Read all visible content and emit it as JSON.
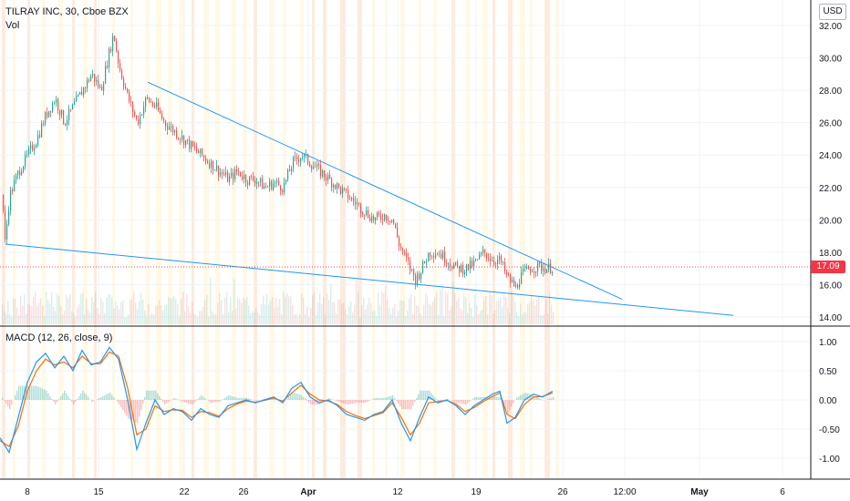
{
  "header": {
    "title": "TILRAY INC, 30, Cboe BZX",
    "volume_label": "Vol",
    "currency": "USD"
  },
  "macd": {
    "label": "MACD (12, 26, close, 9)"
  },
  "last_price": "17.09",
  "colors": {
    "up": "#26a69a",
    "down": "#ef5350",
    "trendline": "#2196f3",
    "macd_line": "#2196f3",
    "signal_line": "#ff6d00",
    "last_price": "#f23645"
  },
  "chart_data": [
    {
      "type": "candlestick",
      "title": "TILRAY INC, 30, Cboe BZX",
      "ylim": [
        13.5,
        32.6
      ],
      "y_ticks": [
        "14.00",
        "16.00",
        "18.00",
        "20.00",
        "22.00",
        "24.00",
        "26.00",
        "28.00",
        "30.00",
        "32.00"
      ],
      "x_ticks": [
        "8",
        "15",
        "22",
        "26",
        "Apr",
        "12",
        "19",
        "26",
        "12:00",
        "May",
        "6"
      ],
      "path": [
        [
          0,
          23.5
        ],
        [
          5,
          18.6
        ],
        [
          10,
          21.5
        ],
        [
          20,
          23
        ],
        [
          30,
          24
        ],
        [
          40,
          25
        ],
        [
          50,
          26.5
        ],
        [
          60,
          27.5
        ],
        [
          70,
          26
        ],
        [
          80,
          27
        ],
        [
          90,
          28
        ],
        [
          100,
          29
        ],
        [
          110,
          28
        ],
        [
          118,
          30
        ],
        [
          124,
          31.5
        ],
        [
          130,
          29.5
        ],
        [
          140,
          27.5
        ],
        [
          150,
          26
        ],
        [
          160,
          27.5
        ],
        [
          170,
          27
        ],
        [
          180,
          26
        ],
        [
          190,
          25.5
        ],
        [
          200,
          25
        ],
        [
          210,
          24.5
        ],
        [
          220,
          24
        ],
        [
          230,
          23.5
        ],
        [
          240,
          23
        ],
        [
          250,
          22.5
        ],
        [
          260,
          23
        ],
        [
          270,
          22.5
        ],
        [
          280,
          22.5
        ],
        [
          290,
          22
        ],
        [
          300,
          22.3
        ],
        [
          310,
          22
        ],
        [
          320,
          23.5
        ],
        [
          330,
          24
        ],
        [
          340,
          23.5
        ],
        [
          350,
          23
        ],
        [
          360,
          22.5
        ],
        [
          370,
          22
        ],
        [
          380,
          21.5
        ],
        [
          390,
          21
        ],
        [
          400,
          20.5
        ],
        [
          410,
          20
        ],
        [
          420,
          20.3
        ],
        [
          430,
          20
        ],
        [
          437,
          18.5
        ],
        [
          445,
          17.5
        ],
        [
          455,
          16.3
        ],
        [
          462,
          17
        ],
        [
          470,
          18
        ],
        [
          480,
          18
        ],
        [
          490,
          17.5
        ],
        [
          500,
          17
        ],
        [
          510,
          17
        ],
        [
          520,
          17.3
        ],
        [
          530,
          18
        ],
        [
          540,
          17.5
        ],
        [
          548,
          17.5
        ],
        [
          555,
          16.5
        ],
        [
          565,
          15.8
        ],
        [
          570,
          16.5
        ],
        [
          580,
          17
        ],
        [
          590,
          17.1
        ],
        [
          600,
          17
        ],
        [
          606,
          17.09
        ]
      ],
      "overlays": {
        "upper_trendline": [
          [
            162,
            28.5
          ],
          [
            682,
            15.1
          ]
        ],
        "lower_trendline": [
          [
            6,
            18.5
          ],
          [
            804,
            14.1
          ]
        ],
        "last_price_line": 17.09
      }
    },
    {
      "type": "line",
      "title": "MACD (12, 26, close, 9)",
      "ylim": [
        -1.3,
        1.22
      ],
      "y_ticks": [
        "1.00",
        "0.50",
        "0.00",
        "-0.50",
        "-1.00"
      ],
      "series": [
        {
          "name": "MACD",
          "values": [
            [
              0,
              -0.65
            ],
            [
              10,
              -0.9
            ],
            [
              20,
              -0.3
            ],
            [
              30,
              0.3
            ],
            [
              40,
              0.65
            ],
            [
              50,
              0.8
            ],
            [
              60,
              0.55
            ],
            [
              70,
              0.75
            ],
            [
              80,
              0.5
            ],
            [
              90,
              0.85
            ],
            [
              100,
              0.6
            ],
            [
              110,
              0.65
            ],
            [
              120,
              0.9
            ],
            [
              130,
              0.7
            ],
            [
              140,
              0.0
            ],
            [
              150,
              -0.85
            ],
            [
              160,
              -0.4
            ],
            [
              170,
              0.0
            ],
            [
              180,
              -0.25
            ],
            [
              190,
              -0.15
            ],
            [
              200,
              -0.2
            ],
            [
              210,
              -0.35
            ],
            [
              220,
              -0.15
            ],
            [
              230,
              -0.25
            ],
            [
              240,
              -0.3
            ],
            [
              250,
              -0.1
            ],
            [
              260,
              -0.05
            ],
            [
              270,
              0.0
            ],
            [
              280,
              -0.05
            ],
            [
              290,
              0.0
            ],
            [
              300,
              0.05
            ],
            [
              310,
              -0.05
            ],
            [
              320,
              0.2
            ],
            [
              330,
              0.3
            ],
            [
              340,
              0.05
            ],
            [
              350,
              -0.05
            ],
            [
              360,
              0.0
            ],
            [
              370,
              -0.1
            ],
            [
              380,
              -0.25
            ],
            [
              390,
              -0.3
            ],
            [
              400,
              -0.35
            ],
            [
              410,
              -0.25
            ],
            [
              420,
              -0.2
            ],
            [
              430,
              0.0
            ],
            [
              440,
              -0.4
            ],
            [
              450,
              -0.7
            ],
            [
              460,
              -0.3
            ],
            [
              470,
              0.05
            ],
            [
              480,
              -0.05
            ],
            [
              490,
              0.0
            ],
            [
              500,
              -0.1
            ],
            [
              510,
              -0.25
            ],
            [
              520,
              -0.1
            ],
            [
              530,
              0.0
            ],
            [
              540,
              0.1
            ],
            [
              548,
              0.15
            ],
            [
              556,
              -0.4
            ],
            [
              565,
              -0.3
            ],
            [
              575,
              0.0
            ],
            [
              585,
              0.1
            ],
            [
              595,
              0.05
            ],
            [
              606,
              0.15
            ]
          ]
        },
        {
          "name": "Signal",
          "values": [
            [
              0,
              -0.7
            ],
            [
              10,
              -0.8
            ],
            [
              20,
              -0.45
            ],
            [
              30,
              0.15
            ],
            [
              40,
              0.5
            ],
            [
              50,
              0.7
            ],
            [
              60,
              0.6
            ],
            [
              70,
              0.65
            ],
            [
              80,
              0.55
            ],
            [
              90,
              0.75
            ],
            [
              100,
              0.62
            ],
            [
              110,
              0.62
            ],
            [
              120,
              0.82
            ],
            [
              130,
              0.75
            ],
            [
              140,
              0.2
            ],
            [
              150,
              -0.6
            ],
            [
              160,
              -0.5
            ],
            [
              170,
              -0.1
            ],
            [
              180,
              -0.2
            ],
            [
              190,
              -0.17
            ],
            [
              200,
              -0.18
            ],
            [
              210,
              -0.3
            ],
            [
              220,
              -0.2
            ],
            [
              230,
              -0.22
            ],
            [
              240,
              -0.28
            ],
            [
              250,
              -0.15
            ],
            [
              260,
              -0.07
            ],
            [
              270,
              -0.02
            ],
            [
              280,
              -0.04
            ],
            [
              290,
              -0.01
            ],
            [
              300,
              0.03
            ],
            [
              310,
              -0.02
            ],
            [
              320,
              0.12
            ],
            [
              330,
              0.25
            ],
            [
              340,
              0.1
            ],
            [
              350,
              0.0
            ],
            [
              360,
              -0.02
            ],
            [
              370,
              -0.08
            ],
            [
              380,
              -0.2
            ],
            [
              390,
              -0.27
            ],
            [
              400,
              -0.32
            ],
            [
              410,
              -0.27
            ],
            [
              420,
              -0.22
            ],
            [
              430,
              -0.05
            ],
            [
              440,
              -0.3
            ],
            [
              450,
              -0.6
            ],
            [
              460,
              -0.4
            ],
            [
              470,
              -0.05
            ],
            [
              480,
              -0.03
            ],
            [
              490,
              -0.01
            ],
            [
              500,
              -0.07
            ],
            [
              510,
              -0.2
            ],
            [
              520,
              -0.13
            ],
            [
              530,
              -0.03
            ],
            [
              540,
              0.06
            ],
            [
              548,
              0.12
            ],
            [
              556,
              -0.25
            ],
            [
              565,
              -0.32
            ],
            [
              575,
              -0.08
            ],
            [
              585,
              0.05
            ],
            [
              595,
              0.06
            ],
            [
              606,
              0.12
            ]
          ]
        }
      ]
    }
  ]
}
